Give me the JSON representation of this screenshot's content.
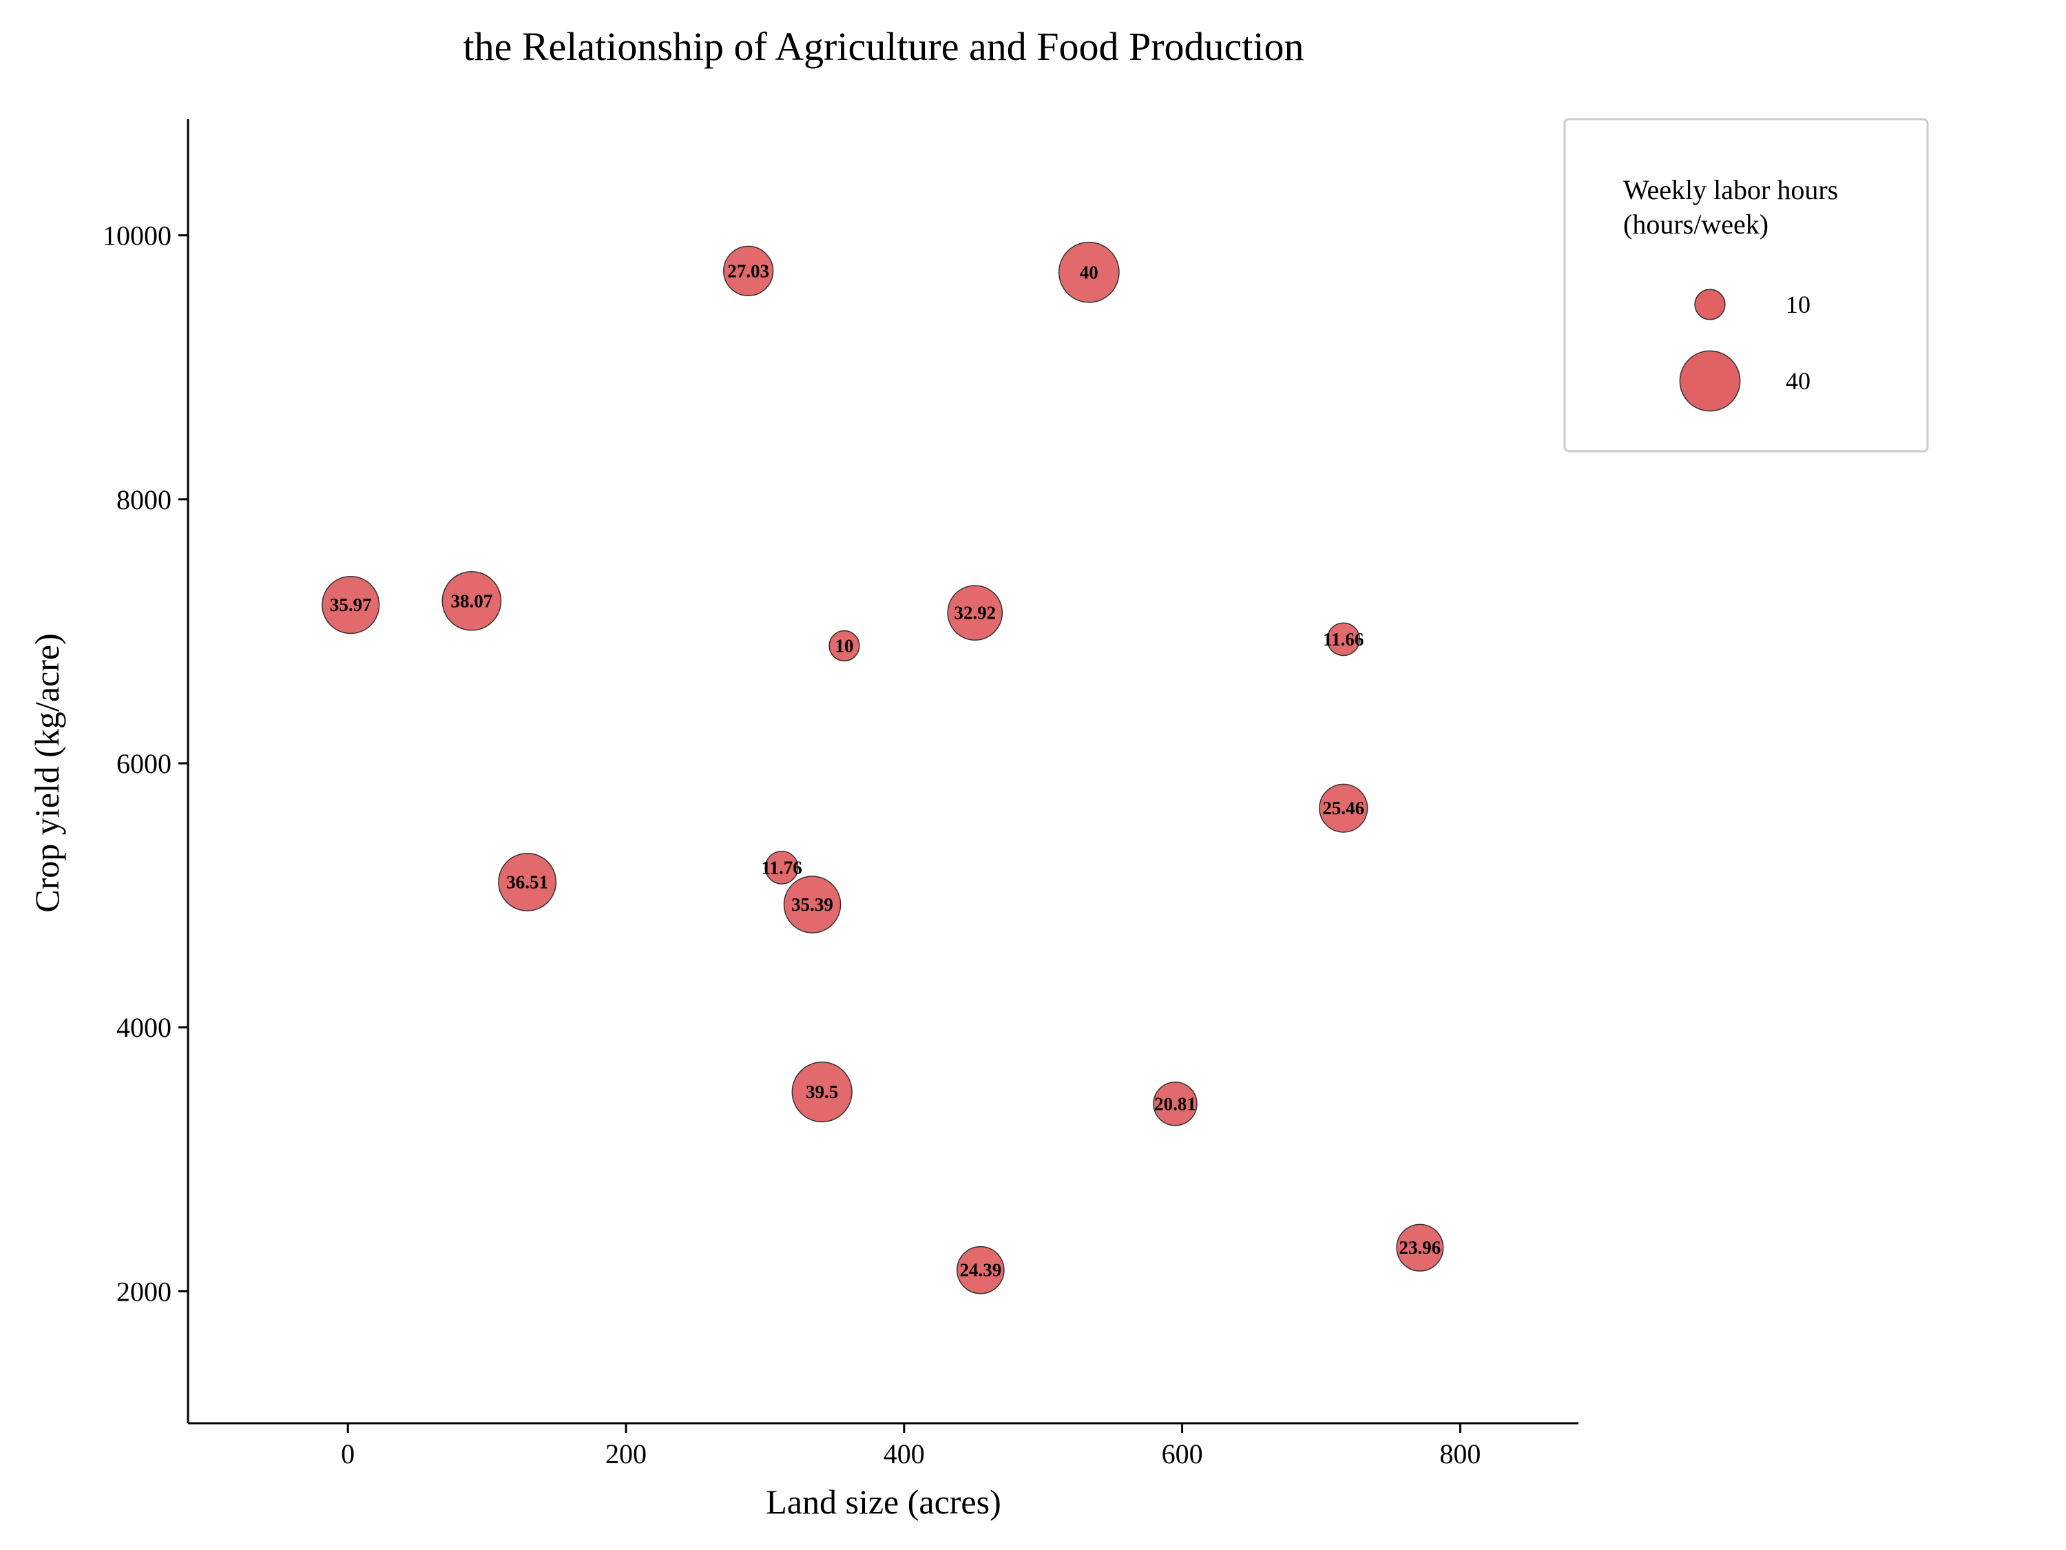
{
  "chart_data": {
    "type": "scatter",
    "title": "the Relationship of Agriculture and Food Production",
    "xlabel": "Land size (acres)",
    "ylabel": "Crop yield (kg/acre)",
    "xlim": [
      -115,
      885
    ],
    "ylim": [
      1000,
      10880
    ],
    "xticks": [
      0,
      200,
      400,
      600,
      800
    ],
    "yticks": [
      2000,
      4000,
      6000,
      8000,
      10000
    ],
    "grid": false,
    "legend": {
      "title_lines": [
        "Weekly labor hours",
        "(hours/week)"
      ],
      "placement": "top-right, outside plot",
      "entries": [
        {
          "label": "10",
          "size_value": 10
        },
        {
          "label": "40",
          "size_value": 40
        }
      ]
    },
    "colors": {
      "bubble_fill": "#e06265",
      "bubble_edge": "#333333",
      "axis": "#000000"
    },
    "points": [
      {
        "x": 288,
        "y": 9730,
        "size": 27.03,
        "label": "27.03"
      },
      {
        "x": 533,
        "y": 9720,
        "size": 40,
        "label": "40"
      },
      {
        "x": 2,
        "y": 7200,
        "size": 35.97,
        "label": "35.97"
      },
      {
        "x": 89,
        "y": 7230,
        "size": 38.07,
        "label": "38.07"
      },
      {
        "x": 357,
        "y": 6890,
        "size": 10,
        "label": "10"
      },
      {
        "x": 451,
        "y": 7140,
        "size": 32.92,
        "label": "32.92"
      },
      {
        "x": 716,
        "y": 6940,
        "size": 11.66,
        "label": "11.66"
      },
      {
        "x": 716,
        "y": 5660,
        "size": 25.46,
        "label": "25.46"
      },
      {
        "x": 129,
        "y": 5100,
        "size": 36.51,
        "label": "36.51"
      },
      {
        "x": 312,
        "y": 5210,
        "size": 11.76,
        "label": "11.76"
      },
      {
        "x": 334,
        "y": 4930,
        "size": 35.39,
        "label": "35.39"
      },
      {
        "x": 341,
        "y": 3510,
        "size": 39.5,
        "label": "39.5"
      },
      {
        "x": 595,
        "y": 3420,
        "size": 20.81,
        "label": "20.81"
      },
      {
        "x": 455,
        "y": 2160,
        "size": 24.39,
        "label": "24.39"
      },
      {
        "x": 771,
        "y": 2330,
        "size": 23.96,
        "label": "23.96"
      }
    ]
  }
}
